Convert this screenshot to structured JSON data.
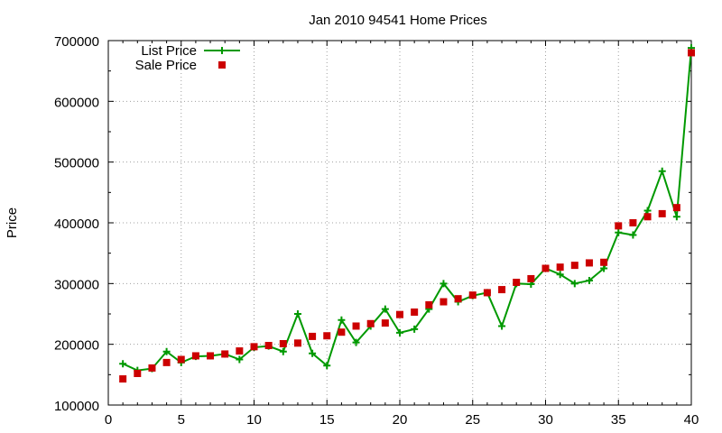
{
  "chart_data": {
    "type": "line",
    "title": "Jan 2010 94541 Home Prices",
    "xlabel": "",
    "ylabel": "Price",
    "xlim": [
      0,
      40
    ],
    "ylim": [
      100000,
      700000
    ],
    "x_ticks": [
      0,
      5,
      10,
      15,
      20,
      25,
      30,
      35,
      40
    ],
    "y_ticks": [
      100000,
      200000,
      300000,
      400000,
      500000,
      600000,
      700000
    ],
    "grid": true,
    "legend_position": "top-left",
    "series": [
      {
        "name": "List Price",
        "style": "line-plus",
        "color": "#009900",
        "x": [
          1,
          2,
          3,
          4,
          5,
          6,
          7,
          8,
          9,
          10,
          11,
          12,
          13,
          14,
          15,
          16,
          17,
          18,
          19,
          20,
          21,
          22,
          23,
          24,
          25,
          26,
          27,
          28,
          29,
          30,
          31,
          32,
          33,
          34,
          35,
          36,
          37,
          38,
          39,
          40
        ],
        "values": [
          168000,
          157000,
          160000,
          188000,
          170000,
          180000,
          181000,
          184000,
          175000,
          195000,
          197000,
          188000,
          250000,
          185000,
          165000,
          240000,
          203000,
          230000,
          258000,
          219000,
          225000,
          258000,
          300000,
          270000,
          280000,
          285000,
          230000,
          300000,
          299000,
          325000,
          315000,
          300000,
          305000,
          325000,
          384000,
          380000,
          420000,
          485000,
          410000,
          688000
        ]
      },
      {
        "name": "Sale Price",
        "style": "square",
        "color": "#cc0000",
        "x": [
          1,
          2,
          3,
          4,
          5,
          6,
          7,
          8,
          9,
          10,
          11,
          12,
          13,
          14,
          15,
          16,
          17,
          18,
          19,
          20,
          21,
          22,
          23,
          24,
          25,
          26,
          27,
          28,
          29,
          30,
          31,
          32,
          33,
          34,
          35,
          36,
          37,
          38,
          39,
          40
        ],
        "values": [
          143000,
          152000,
          161000,
          170000,
          175000,
          181000,
          181000,
          184000,
          189000,
          196000,
          198000,
          201000,
          202000,
          213000,
          214000,
          220000,
          230000,
          234000,
          235000,
          249000,
          253000,
          265000,
          270000,
          275000,
          281000,
          285000,
          290000,
          302000,
          308000,
          325000,
          327000,
          330000,
          334000,
          335000,
          395000,
          400000,
          410000,
          415000,
          425000,
          680000
        ]
      }
    ]
  }
}
